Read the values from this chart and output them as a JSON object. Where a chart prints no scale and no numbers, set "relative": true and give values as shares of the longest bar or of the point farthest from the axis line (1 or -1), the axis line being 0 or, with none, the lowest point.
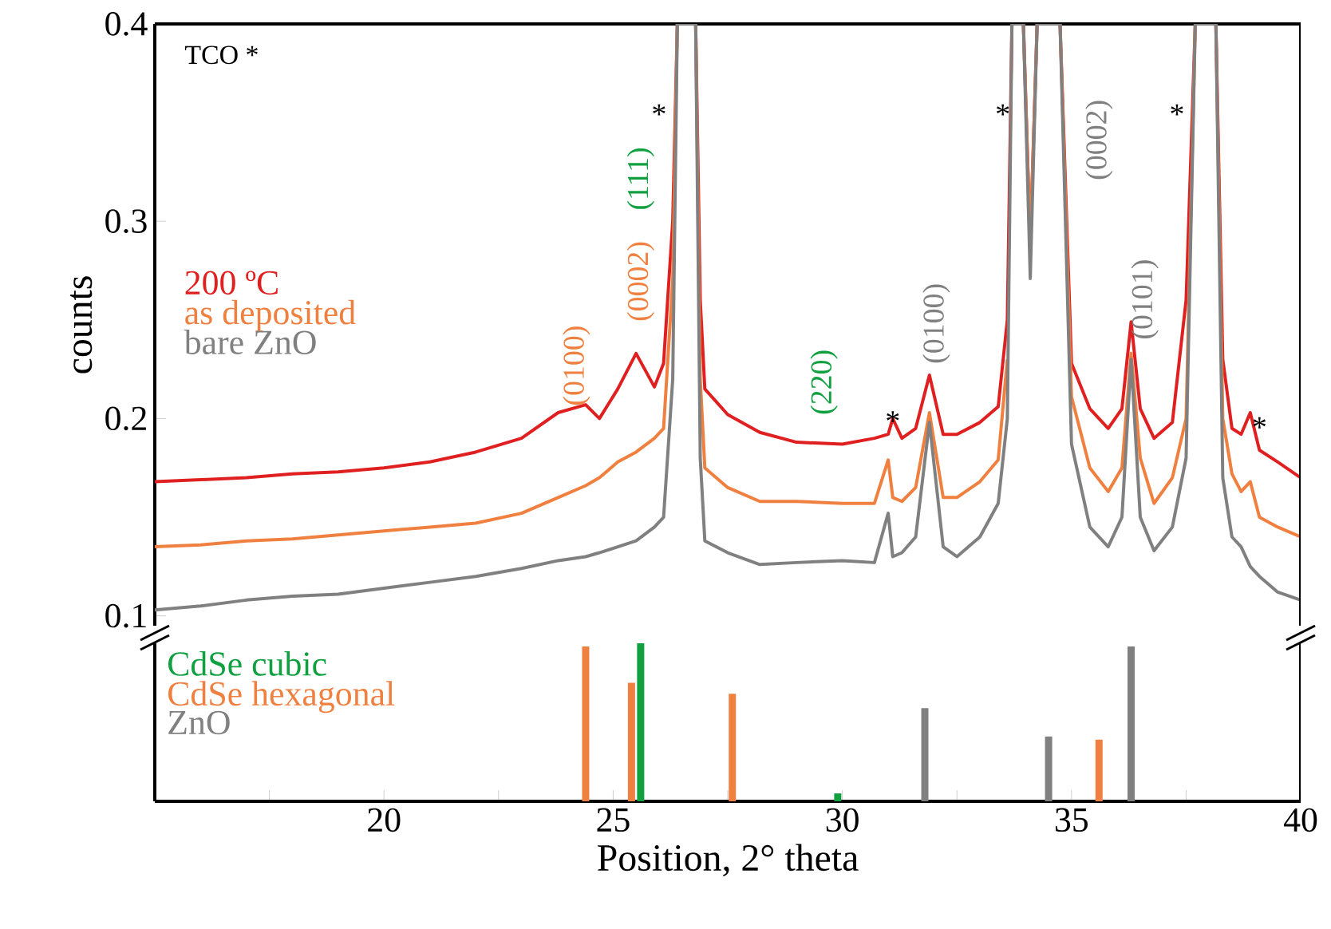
{
  "chart_data": [
    {
      "type": "line",
      "ylabel": "counts",
      "xlim": [
        15,
        40
      ],
      "ylim": [
        0.095,
        0.4
      ],
      "yticks": [
        0.1,
        0.2,
        0.3,
        0.4
      ],
      "tick_labels": "y",
      "legend": "left",
      "x": [
        15,
        16,
        17,
        18,
        19,
        20,
        21,
        22,
        23,
        23.8,
        24.4,
        24.7,
        25.1,
        25.5,
        25.9,
        26.1,
        26.3,
        26.4,
        26.6,
        26.8,
        26.9,
        27.0,
        27.5,
        28.2,
        29,
        30,
        30.7,
        31.0,
        31.1,
        31.3,
        31.6,
        31.9,
        32.2,
        32.5,
        33.0,
        33.4,
        33.6,
        33.7,
        33.95,
        34.1,
        34.25,
        34.5,
        34.75,
        35.0,
        35.4,
        35.8,
        36.1,
        36.3,
        36.5,
        36.8,
        37.2,
        37.5,
        37.7,
        37.9,
        38.15,
        38.3,
        38.5,
        38.7,
        38.9,
        39.1,
        39.5,
        40
      ],
      "series": [
        {
          "name": "200 ºC",
          "color": "#e02020",
          "values": [
            0.168,
            0.169,
            0.17,
            0.172,
            0.173,
            0.175,
            0.178,
            0.183,
            0.19,
            0.203,
            0.207,
            0.2,
            0.215,
            0.233,
            0.216,
            0.228,
            0.3,
            0.4,
            0.4,
            0.4,
            0.26,
            0.215,
            0.202,
            0.193,
            0.188,
            0.187,
            0.19,
            0.192,
            0.2,
            0.19,
            0.195,
            0.222,
            0.192,
            0.192,
            0.198,
            0.206,
            0.25,
            0.4,
            0.4,
            0.289,
            0.4,
            0.4,
            0.4,
            0.228,
            0.205,
            0.195,
            0.205,
            0.249,
            0.205,
            0.19,
            0.198,
            0.26,
            0.4,
            0.4,
            0.4,
            0.23,
            0.195,
            0.192,
            0.203,
            0.184,
            0.178,
            0.17
          ]
        },
        {
          "name": "as deposited",
          "color": "#f08040",
          "values": [
            0.135,
            0.136,
            0.138,
            0.139,
            0.141,
            0.143,
            0.145,
            0.147,
            0.152,
            0.16,
            0.166,
            0.17,
            0.178,
            0.183,
            0.19,
            0.195,
            0.27,
            0.4,
            null,
            0.4,
            0.22,
            0.175,
            0.165,
            0.158,
            0.158,
            0.157,
            0.157,
            0.179,
            0.16,
            0.158,
            0.165,
            0.203,
            0.16,
            0.16,
            0.168,
            0.179,
            0.23,
            null,
            0.4,
            0.287,
            0.4,
            null,
            0.4,
            0.211,
            0.175,
            0.163,
            0.175,
            0.233,
            0.18,
            0.157,
            0.17,
            0.2,
            0.4,
            null,
            0.4,
            0.2,
            0.172,
            0.163,
            0.168,
            0.15,
            0.145,
            0.14
          ]
        },
        {
          "name": "bare ZnO",
          "color": "#808080",
          "values": [
            0.103,
            0.105,
            0.108,
            0.11,
            0.111,
            0.114,
            0.117,
            0.12,
            0.124,
            0.128,
            0.13,
            0.132,
            0.135,
            0.138,
            0.145,
            0.15,
            0.22,
            0.4,
            0.4,
            0.4,
            0.18,
            0.138,
            0.132,
            0.126,
            0.127,
            0.128,
            0.127,
            0.152,
            0.13,
            0.132,
            0.14,
            0.198,
            0.135,
            0.13,
            0.14,
            0.157,
            0.2,
            0.4,
            0.4,
            0.271,
            0.4,
            0.4,
            0.4,
            0.187,
            0.145,
            0.135,
            0.15,
            0.23,
            0.15,
            0.133,
            0.145,
            0.18,
            0.4,
            0.4,
            0.4,
            0.17,
            0.14,
            0.135,
            0.125,
            0.12,
            0.112,
            0.108
          ]
        }
      ],
      "annotations": [
        "TCO  *",
        "(0100)",
        "(0002)",
        "(111)",
        "*",
        "(220)",
        "*",
        "(0100)",
        "*",
        "(0002)",
        "(0101)",
        "*",
        "*"
      ]
    },
    {
      "type": "bar",
      "relative": true,
      "xlabel": "Position, 2° theta",
      "xlim": [
        15,
        40
      ],
      "tick_labels": "x",
      "legend": "top left",
      "xticks": [
        {
          "value": 17.5,
          "label": null
        },
        20,
        {
          "value": 22.5,
          "label": null
        },
        25,
        {
          "value": 27.5,
          "label": null
        },
        30,
        {
          "value": 32.5,
          "label": null
        },
        35,
        {
          "value": 37.5,
          "label": null
        },
        40
      ],
      "series": [
        {
          "name": "CdSe cubic",
          "color": "#10a040",
          "x": [
            25.6,
            29.9
          ],
          "values": [
            1.0,
            0.05
          ]
        },
        {
          "name": "CdSe hexagonal",
          "color": "#f08040",
          "x": [
            24.4,
            25.4,
            27.6,
            35.6
          ],
          "values": [
            0.98,
            0.75,
            0.68,
            0.39
          ]
        },
        {
          "name": "ZnO",
          "color": "#808080",
          "x": [
            31.8,
            34.5,
            36.3
          ],
          "values": [
            0.59,
            0.41,
            0.98
          ]
        }
      ]
    }
  ]
}
